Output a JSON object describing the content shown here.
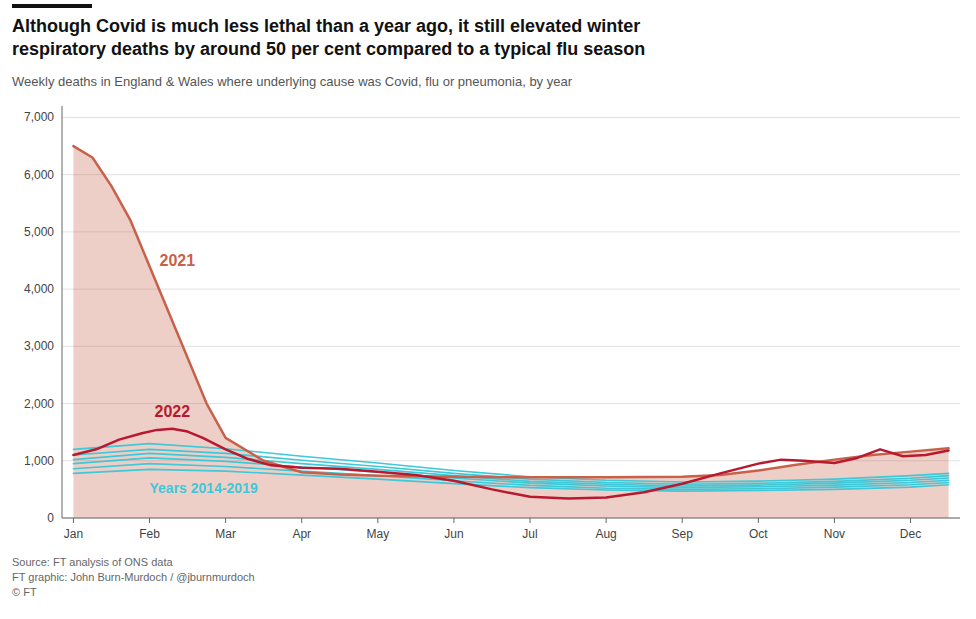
{
  "chart_data": {
    "type": "line",
    "title": "Although Covid is much less lethal than a year ago, it still elevated winter\nrespiratory deaths by around 50 per cent compared to a typical flu season",
    "subtitle": "Weekly deaths in England & Wales where underlying cause was Covid, flu or pneumonia, by year",
    "source": "Source: FT analysis of ONS data\nFT graphic: John Burn-Murdoch / @jburnmurdoch\n© FT",
    "xlim": [
      -0.15,
      11.65
    ],
    "xticks": [
      {
        "value": 0,
        "label": "Jan"
      },
      {
        "value": 1,
        "label": "Feb"
      },
      {
        "value": 2,
        "label": "Mar"
      },
      {
        "value": 3,
        "label": "Apr"
      },
      {
        "value": 4,
        "label": "May"
      },
      {
        "value": 5,
        "label": "Jun"
      },
      {
        "value": 6,
        "label": "Jul"
      },
      {
        "value": 7,
        "label": "Aug"
      },
      {
        "value": 8,
        "label": "Sep"
      },
      {
        "value": 9,
        "label": "Oct"
      },
      {
        "value": 10,
        "label": "Nov"
      },
      {
        "value": 11,
        "label": "Dec"
      }
    ],
    "ylim": [
      0,
      7200
    ],
    "yticks": [
      0,
      {
        "value": 1000,
        "label": "1,000"
      },
      {
        "value": 2000,
        "label": "2,000"
      },
      {
        "value": 3000,
        "label": "3,000"
      },
      {
        "value": 4000,
        "label": "4,000"
      },
      {
        "value": 5000,
        "label": "5,000"
      },
      {
        "value": 6000,
        "label": "6,000"
      },
      {
        "value": 7000,
        "label": "7,000"
      }
    ],
    "grid": true,
    "annotations": [
      "Years 2014-2019"
    ],
    "series": [
      {
        "type": "line",
        "color": "#3ec8d8",
        "x": [
          0,
          1.0,
          2.0,
          3.0,
          4.0,
          5.0,
          6.0,
          7.0,
          8.0,
          9.0,
          10.0,
          11.0,
          11.5
        ],
        "values": [
          780,
          850,
          820,
          750,
          680,
          600,
          530,
          490,
          470,
          480,
          500,
          540,
          580
        ]
      },
      {
        "type": "line",
        "color": "#3ec8d8",
        "x": [
          0,
          1.0,
          2.0,
          3.0,
          4.0,
          5.0,
          6.0,
          7.0,
          8.0,
          9.0,
          10.0,
          11.0,
          11.5
        ],
        "values": [
          860,
          950,
          900,
          820,
          740,
          650,
          570,
          520,
          500,
          510,
          540,
          580,
          620
        ]
      },
      {
        "type": "line",
        "color": "#3ec8d8",
        "x": [
          0,
          1.0,
          2.0,
          3.0,
          4.0,
          5.0,
          6.0,
          7.0,
          8.0,
          9.0,
          10.0,
          11.0,
          11.5
        ],
        "values": [
          950,
          1050,
          990,
          890,
          800,
          700,
          610,
          560,
          530,
          545,
          575,
          620,
          660
        ]
      },
      {
        "type": "line",
        "color": "#3ec8d8",
        "x": [
          0,
          1.0,
          2.0,
          3.0,
          4.0,
          5.0,
          6.0,
          7.0,
          8.0,
          9.0,
          10.0,
          11.0,
          11.5
        ],
        "values": [
          1020,
          1130,
          1060,
          950,
          850,
          740,
          640,
          590,
          560,
          575,
          610,
          660,
          700
        ]
      },
      {
        "type": "line",
        "color": "#3ec8d8",
        "x": [
          0,
          1.0,
          2.0,
          3.0,
          4.0,
          5.0,
          6.0,
          7.0,
          8.0,
          9.0,
          10.0,
          11.0,
          11.5
        ],
        "values": [
          1100,
          1200,
          1130,
          1010,
          900,
          780,
          680,
          620,
          590,
          605,
          640,
          695,
          740
        ]
      },
      {
        "type": "line",
        "color": "#3ec8d8",
        "x": [
          0,
          1.0,
          2.0,
          3.0,
          4.0,
          5.0,
          6.0,
          7.0,
          8.0,
          9.0,
          10.0,
          11.0,
          11.5
        ],
        "values": [
          1200,
          1300,
          1210,
          1080,
          960,
          830,
          720,
          660,
          630,
          645,
          680,
          740,
          780
        ]
      },
      {
        "name": "2021",
        "type": "area",
        "color": "#c8614a",
        "x": [
          0,
          0.25,
          0.5,
          0.75,
          1.0,
          1.25,
          1.5,
          1.75,
          2.0,
          2.5,
          3.0,
          3.5,
          4.0,
          5.0,
          6.0,
          7.0,
          8.0,
          8.5,
          9.0,
          9.5,
          10.0,
          10.5,
          11.0,
          11.5
        ],
        "values": [
          6500,
          6300,
          5800,
          5200,
          4400,
          3600,
          2800,
          2000,
          1400,
          1000,
          800,
          760,
          740,
          720,
          710,
          710,
          720,
          750,
          830,
          930,
          1020,
          1100,
          1160,
          1220
        ]
      },
      {
        "name": "2022",
        "type": "line",
        "color": "#b8192e",
        "x": [
          0,
          0.3,
          0.6,
          0.9,
          1.1,
          1.3,
          1.5,
          1.7,
          2.0,
          2.3,
          2.6,
          3.0,
          3.5,
          4.0,
          4.5,
          5.0,
          5.5,
          6.0,
          6.5,
          7.0,
          7.5,
          8.0,
          8.5,
          9.0,
          9.3,
          9.6,
          10.0,
          10.3,
          10.6,
          10.9,
          11.2,
          11.5
        ],
        "values": [
          1100,
          1200,
          1370,
          1480,
          1540,
          1560,
          1510,
          1400,
          1200,
          1030,
          920,
          880,
          860,
          810,
          750,
          650,
          500,
          370,
          340,
          360,
          450,
          600,
          780,
          950,
          1020,
          1000,
          960,
          1050,
          1200,
          1080,
          1100,
          1180
        ]
      }
    ]
  }
}
